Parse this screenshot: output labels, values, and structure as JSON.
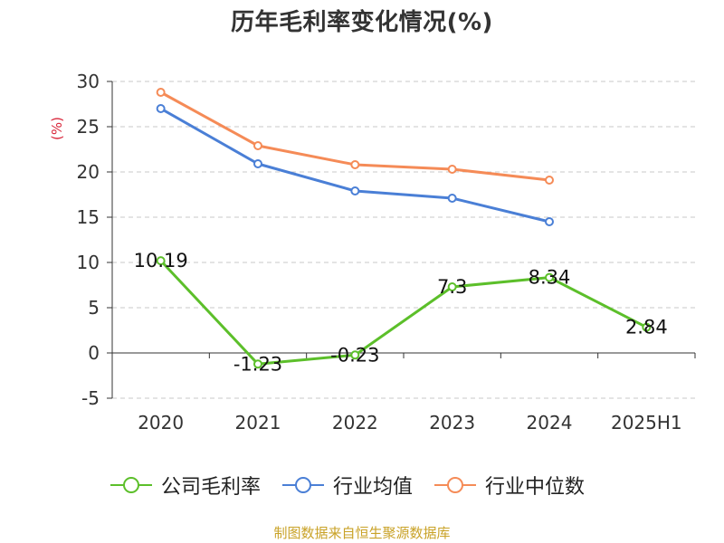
{
  "title": "历年毛利率变化情况(%)",
  "source": "制图数据来自恒生聚源数据库",
  "chart_data": {
    "type": "line",
    "title": "历年毛利率变化情况(%)",
    "xlabel": "",
    "ylabel": "(%)",
    "categories": [
      "2020",
      "2021",
      "2022",
      "2023",
      "2024",
      "2025H1"
    ],
    "ylim": [
      -5,
      30
    ],
    "yticks": [
      -5,
      0,
      5,
      10,
      15,
      20,
      25,
      30
    ],
    "grid": true,
    "legend_position": "bottom",
    "series": [
      {
        "name": "公司毛利率",
        "color": "#5cbf2a",
        "values": [
          10.19,
          -1.23,
          -0.23,
          7.3,
          8.34,
          2.84
        ],
        "labels": [
          "10.19",
          "-1.23",
          "-0.23",
          "7.3",
          "8.34",
          "2.84"
        ],
        "show_labels": true
      },
      {
        "name": "行业均值",
        "color": "#4a7fd6",
        "values": [
          27.0,
          20.9,
          17.9,
          17.1,
          14.5,
          null
        ],
        "show_labels": false
      },
      {
        "name": "行业中位数",
        "color": "#f58b57",
        "values": [
          28.8,
          22.9,
          20.8,
          20.3,
          19.1,
          null
        ],
        "show_labels": false
      }
    ]
  }
}
